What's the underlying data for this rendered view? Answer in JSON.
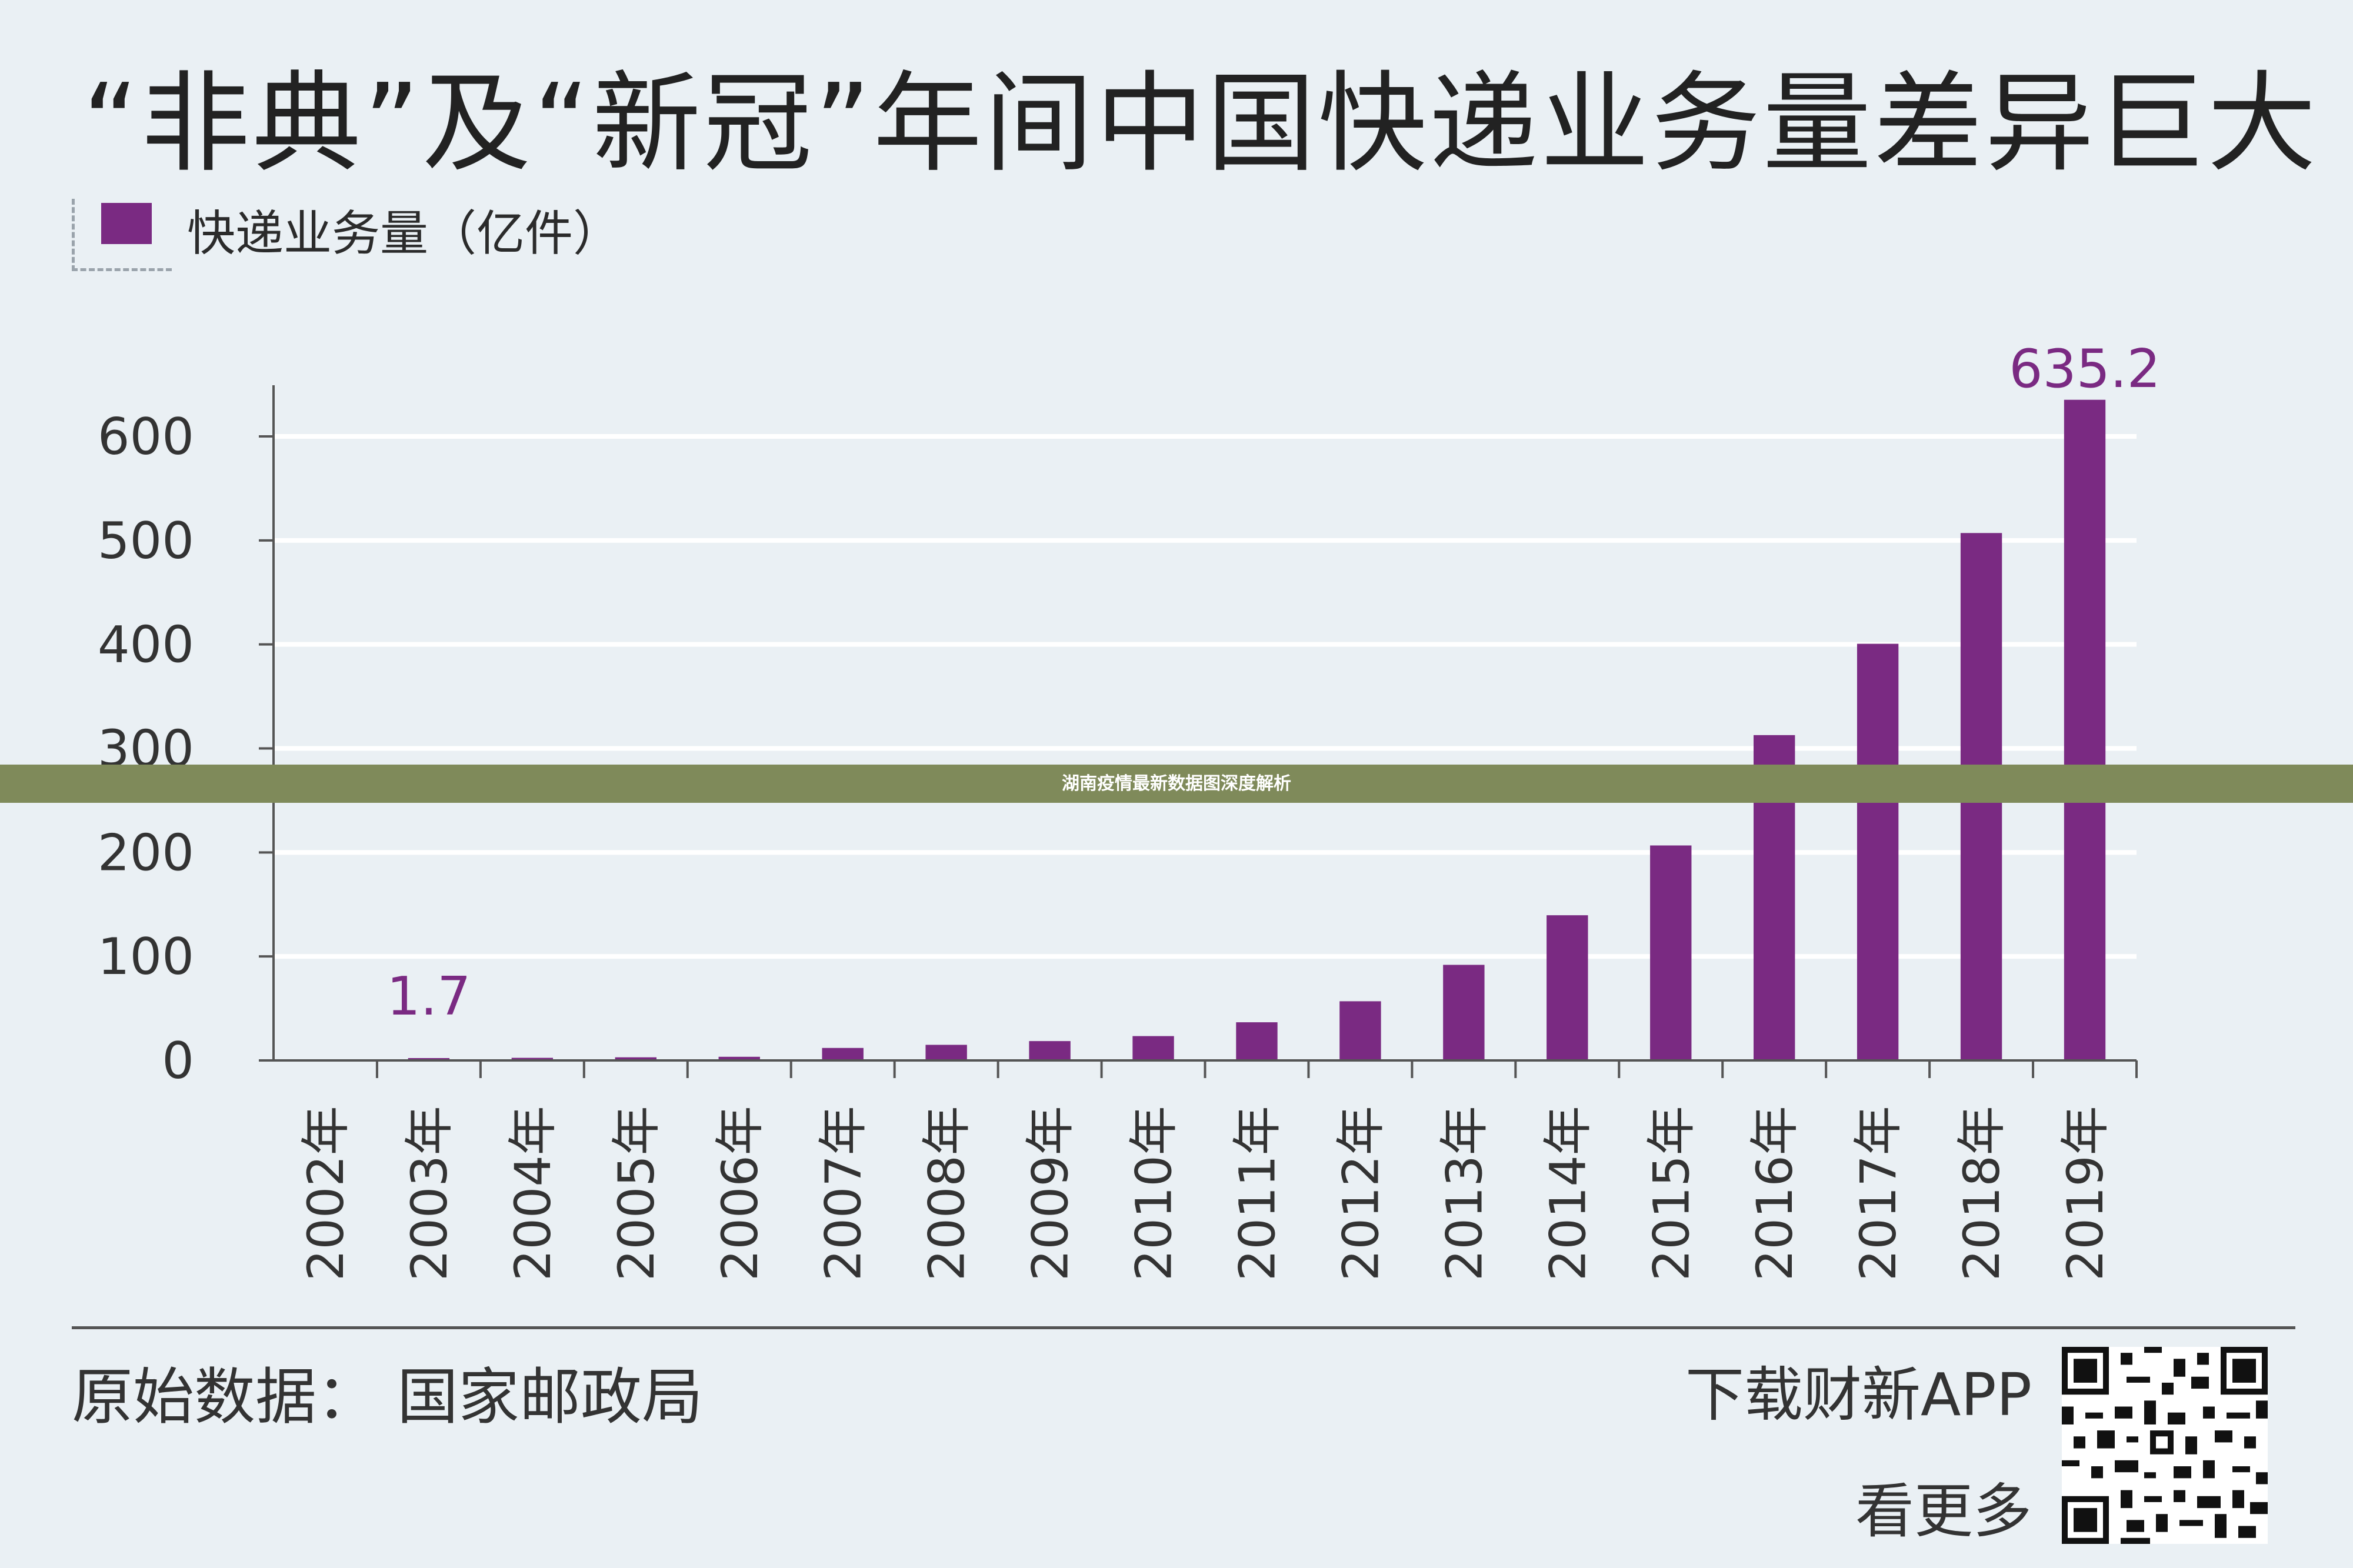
{
  "title": "“非典”及“新冠”年间中国快递业务量差异巨大",
  "legend": {
    "label": "快递业务量（亿件）",
    "color": "#7a2a82"
  },
  "footer": {
    "source": "原始数据：  国家邮政局",
    "download": "下载财新APP",
    "see_more": "看更多"
  },
  "banner": {
    "text": "湖南疫情最新数据图深度解析"
  },
  "chart_data": {
    "type": "bar",
    "title": "“非典”及“新冠”年间中国快递业务量差异巨大",
    "xlabel": "",
    "ylabel": "",
    "ylim": [
      0,
      650
    ],
    "yticks": [
      0,
      100,
      200,
      300,
      400,
      500,
      600
    ],
    "categories": [
      "2002年",
      "2003年",
      "2004年",
      "2005年",
      "2006年",
      "2007年",
      "2008年",
      "2009年",
      "2010年",
      "2011年",
      "2012年",
      "2013年",
      "2014年",
      "2015年",
      "2016年",
      "2017年",
      "2018年",
      "2019年"
    ],
    "series": [
      {
        "name": "快递业务量（亿件）",
        "color": "#7a2a82",
        "values": [
          0,
          1.7,
          2.5,
          3,
          3.5,
          12,
          15,
          18.6,
          23.4,
          36.7,
          56.9,
          91.9,
          139.6,
          206.7,
          312.8,
          400.6,
          507.1,
          635.2
        ]
      }
    ],
    "data_labels": [
      {
        "category": "2003年",
        "text": "1.7"
      },
      {
        "category": "2019年",
        "text": "635.2"
      }
    ],
    "grid": true,
    "legend_position": "top-left"
  }
}
